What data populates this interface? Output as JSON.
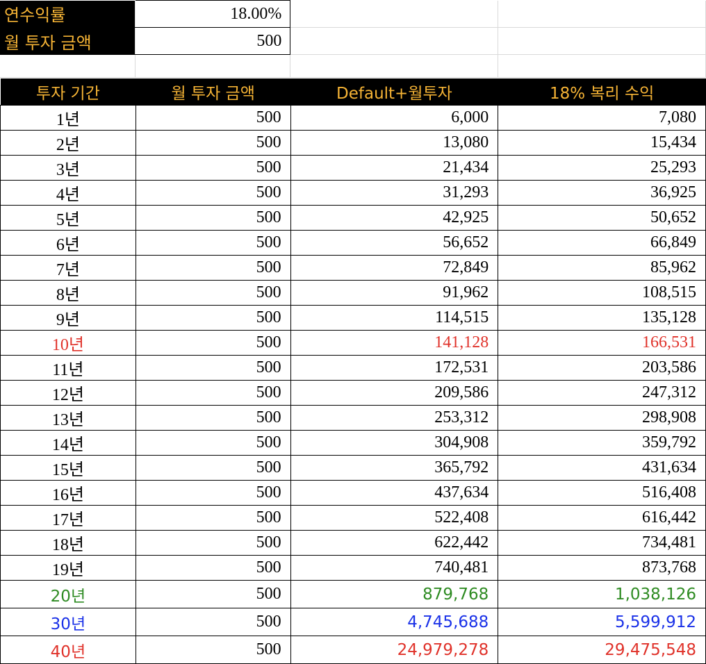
{
  "params": {
    "annual_rate_label": "연수익률",
    "annual_rate_value": "18.00%",
    "monthly_label": "월 투자 금액",
    "monthly_value": "500"
  },
  "table": {
    "headers": [
      "투자 기간",
      "월 투자 금액",
      "Default+월투자",
      "18% 복리 수익"
    ],
    "highlight_colors": {
      "red": "#e0322a",
      "green": "#2e8b22",
      "blue": "#1a31e8"
    },
    "rows": [
      {
        "year": "1년",
        "monthly": "500",
        "default_plus": "6,000",
        "compound": "7,080",
        "color": ""
      },
      {
        "year": "2년",
        "monthly": "500",
        "default_plus": "13,080",
        "compound": "15,434",
        "color": ""
      },
      {
        "year": "3년",
        "monthly": "500",
        "default_plus": "21,434",
        "compound": "25,293",
        "color": ""
      },
      {
        "year": "4년",
        "monthly": "500",
        "default_plus": "31,293",
        "compound": "36,925",
        "color": ""
      },
      {
        "year": "5년",
        "monthly": "500",
        "default_plus": "42,925",
        "compound": "50,652",
        "color": ""
      },
      {
        "year": "6년",
        "monthly": "500",
        "default_plus": "56,652",
        "compound": "66,849",
        "color": ""
      },
      {
        "year": "7년",
        "monthly": "500",
        "default_plus": "72,849",
        "compound": "85,962",
        "color": ""
      },
      {
        "year": "8년",
        "monthly": "500",
        "default_plus": "91,962",
        "compound": "108,515",
        "color": ""
      },
      {
        "year": "9년",
        "monthly": "500",
        "default_plus": "114,515",
        "compound": "135,128",
        "color": ""
      },
      {
        "year": "10년",
        "monthly": "500",
        "default_plus": "141,128",
        "compound": "166,531",
        "color": "#e0322a"
      },
      {
        "year": "11년",
        "monthly": "500",
        "default_plus": "172,531",
        "compound": "203,586",
        "color": ""
      },
      {
        "year": "12년",
        "monthly": "500",
        "default_plus": "209,586",
        "compound": "247,312",
        "color": ""
      },
      {
        "year": "13년",
        "monthly": "500",
        "default_plus": "253,312",
        "compound": "298,908",
        "color": ""
      },
      {
        "year": "14년",
        "monthly": "500",
        "default_plus": "304,908",
        "compound": "359,792",
        "color": ""
      },
      {
        "year": "15년",
        "monthly": "500",
        "default_plus": "365,792",
        "compound": "431,634",
        "color": ""
      },
      {
        "year": "16년",
        "monthly": "500",
        "default_plus": "437,634",
        "compound": "516,408",
        "color": ""
      },
      {
        "year": "17년",
        "monthly": "500",
        "default_plus": "522,408",
        "compound": "616,442",
        "color": ""
      },
      {
        "year": "18년",
        "monthly": "500",
        "default_plus": "622,442",
        "compound": "734,481",
        "color": ""
      },
      {
        "year": "19년",
        "monthly": "500",
        "default_plus": "740,481",
        "compound": "873,768",
        "color": ""
      },
      {
        "year": "20년",
        "monthly": "500",
        "default_plus": "879,768",
        "compound": "1,038,126",
        "color": "#2e8b22"
      },
      {
        "year": "30년",
        "monthly": "500",
        "default_plus": "4,745,688",
        "compound": "5,599,912",
        "color": "#1a31e8"
      },
      {
        "year": "40년",
        "monthly": "500",
        "default_plus": "24,979,278",
        "compound": "29,475,548",
        "color": "#e0322a"
      }
    ]
  }
}
